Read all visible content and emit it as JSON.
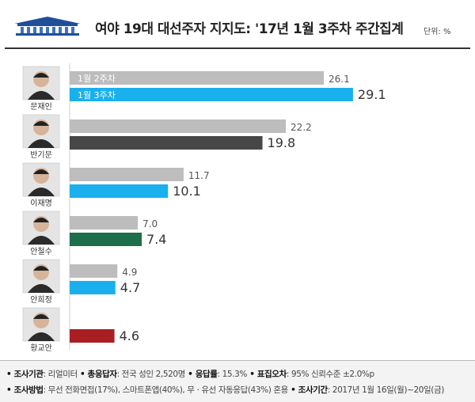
{
  "header": {
    "title": "여야 19대 대선주자 지지도: '17년 1월 3주차 주간집계",
    "unit": "단위: %"
  },
  "chart_data": {
    "type": "bar",
    "orientation": "horizontal",
    "title": "여야 19대 대선주자 지지도: '17년 1월 3주차 주간집계",
    "xlim": [
      0,
      30
    ],
    "grid": false,
    "legend": "inline-first-group",
    "categories": [
      "문재인",
      "반기문",
      "이재명",
      "안철수",
      "안희정",
      "황교안"
    ],
    "series": [
      {
        "name": "1월 2주차",
        "values": [
          26.1,
          22.2,
          11.7,
          7.0,
          4.9,
          null
        ],
        "color": "#bdbdbd"
      },
      {
        "name": "1월 3주차",
        "values": [
          29.1,
          19.8,
          10.1,
          7.4,
          4.7,
          4.6
        ]
      }
    ],
    "current_week_colors": [
      "#1ab0ee",
      "#474747",
      "#1ab0ee",
      "#1d6e4b",
      "#1ab0ee",
      "#a91e22"
    ],
    "portrait_icons": [
      "portrait-icon",
      "portrait-icon",
      "portrait-icon",
      "portrait-icon",
      "portrait-icon",
      "portrait-icon"
    ]
  },
  "footer": {
    "line1": [
      {
        "label": "• 조사기관",
        "value": ": 리얼미터"
      },
      {
        "label": " • 총응답자",
        "value": ": 전국 성인 2,520명"
      },
      {
        "label": " • 응답률",
        "value": ": 15.3%"
      },
      {
        "label": " • 표집오차",
        "value": ": 95% 신뢰수준 ±2.0%p"
      }
    ],
    "line2": [
      {
        "label": "• 조사방법",
        "value": ": 무선 전화면접(17%), 스마트폰앱(40%), 무 · 유선 자동응답(43%) 혼용"
      },
      {
        "label": " • 조사기간",
        "value": ": 2017년 1월 16일(월)~20일(금)"
      }
    ]
  }
}
